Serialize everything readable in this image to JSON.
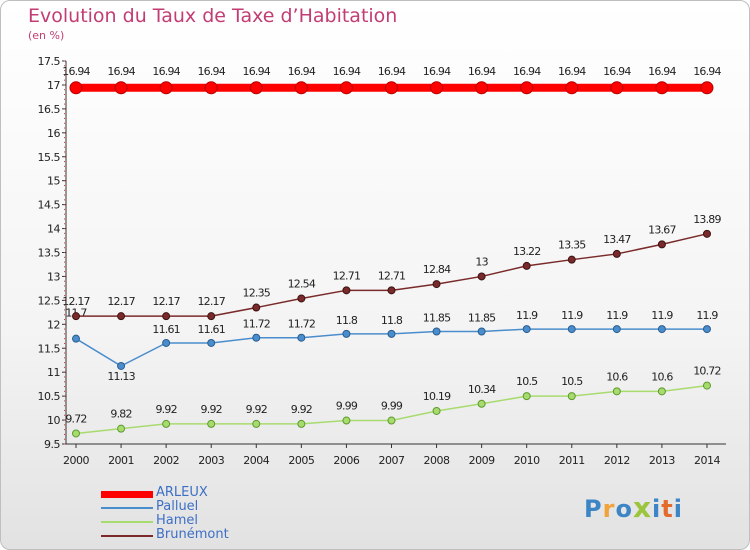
{
  "title": "Evolution du Taux de Taxe d’Habitation",
  "subtitle": "(en %)",
  "logo": {
    "letters": [
      "P",
      "r",
      "o",
      "x",
      "i",
      "t",
      "i"
    ],
    "colors": [
      "#3d86c6",
      "#f0a33a",
      "#3d86c6",
      "#9ac53c",
      "#3d86c6",
      "#e36b2c",
      "#3d86c6"
    ]
  },
  "chart_data": {
    "type": "line",
    "x": [
      "2000",
      "2001",
      "2002",
      "2003",
      "2004",
      "2005",
      "2006",
      "2007",
      "2008",
      "2009",
      "2010",
      "2011",
      "2012",
      "2013",
      "2014"
    ],
    "ylim": [
      9.5,
      17.5
    ],
    "yticks": [
      "9.5",
      "10",
      "10.5",
      "11",
      "11.5",
      "12",
      "12.5",
      "13",
      "13.5",
      "14",
      "14.5",
      "15",
      "15.5",
      "16",
      "16.5",
      "17",
      "17.5"
    ],
    "grid": false,
    "legend": "bottom-left",
    "series": [
      {
        "name": "ARLEUX",
        "color": "#ff0000",
        "values": [
          16.94,
          16.94,
          16.94,
          16.94,
          16.94,
          16.94,
          16.94,
          16.94,
          16.94,
          16.94,
          16.94,
          16.94,
          16.94,
          16.94,
          16.94
        ],
        "labels": [
          "16.94",
          "16.94",
          "16.94",
          "16.94",
          "16.94",
          "16.94",
          "16.94",
          "16.94",
          "16.94",
          "16.94",
          "16.94",
          "16.94",
          "16.94",
          "16.94",
          "16.94"
        ]
      },
      {
        "name": "Palluel",
        "color": "#4a8dcc",
        "values": [
          11.7,
          11.13,
          11.61,
          11.61,
          11.72,
          11.72,
          11.8,
          11.8,
          11.85,
          11.85,
          11.9,
          11.9,
          11.9,
          11.9,
          11.9
        ],
        "labels": [
          "11.7",
          "11.13",
          "11.61",
          "11.61",
          "11.72",
          "11.72",
          "11.8",
          "11.8",
          "11.85",
          "11.85",
          "11.9",
          "11.9",
          "11.9",
          "11.9",
          "11.9"
        ]
      },
      {
        "name": "Hamel",
        "color": "#a8db6e",
        "values": [
          9.72,
          9.82,
          9.92,
          9.92,
          9.92,
          9.92,
          9.99,
          9.99,
          10.19,
          10.34,
          10.5,
          10.5,
          10.6,
          10.6,
          10.72
        ],
        "labels": [
          "9.72",
          "9.82",
          "9.92",
          "9.92",
          "9.92",
          "9.92",
          "9.99",
          "9.99",
          "10.19",
          "10.34",
          "10.5",
          "10.5",
          "10.6",
          "10.6",
          "10.72"
        ]
      },
      {
        "name": "Brunémont",
        "color": "#7a2a2a",
        "values": [
          12.17,
          12.17,
          12.17,
          12.17,
          12.35,
          12.54,
          12.71,
          12.71,
          12.84,
          13,
          13.22,
          13.35,
          13.47,
          13.67,
          13.89
        ],
        "labels": [
          "12.17",
          "12.17",
          "12.17",
          "12.17",
          "12.35",
          "12.54",
          "12.71",
          "12.71",
          "12.84",
          "13",
          "13.22",
          "13.35",
          "13.47",
          "13.67",
          "13.89"
        ]
      }
    ]
  }
}
